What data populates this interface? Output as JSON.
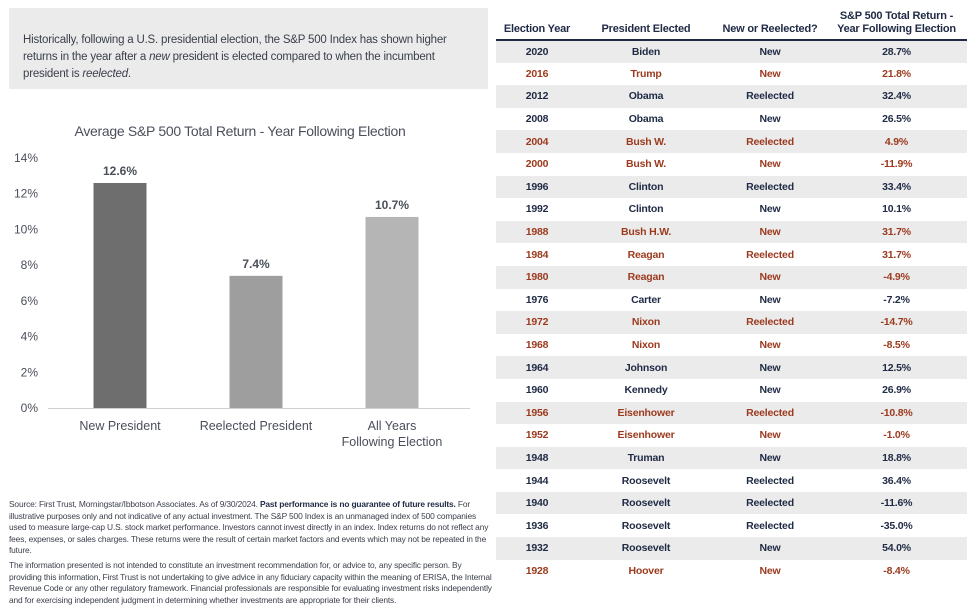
{
  "intro": {
    "text_1": "Historically, following a U.S. presidential election, the S&P 500 Index has shown higher returns in the year after a ",
    "em_1": "new",
    "text_2": " president is elected compared to when the incumbent president is ",
    "em_2": "reelected",
    "text_3": "."
  },
  "colors": {
    "navy": "#1f2a44",
    "republican_red": "#9c3a1e",
    "bar_new_president": "#6e6e6e",
    "bar_reelected": "#9e9e9e",
    "bar_all_years": "#b5b5b5",
    "row_shade": "#ebebeb"
  },
  "chart_data": {
    "type": "bar",
    "title": "Average S&P 500 Total Return - Year Following Election",
    "categories": [
      "New President",
      "Reelected President",
      "All Years Following Election"
    ],
    "category_lines": [
      [
        "New President"
      ],
      [
        "Reelected President"
      ],
      [
        "All Years",
        "Following Election"
      ]
    ],
    "values": [
      12.6,
      7.4,
      10.7
    ],
    "data_labels": [
      "12.6%",
      "7.4%",
      "10.7%"
    ],
    "yticks": [
      0,
      2,
      4,
      6,
      8,
      10,
      12,
      14
    ],
    "ytick_labels": [
      "0%",
      "2%",
      "4%",
      "6%",
      "8%",
      "10%",
      "12%",
      "14%"
    ],
    "ylim": [
      0,
      14
    ],
    "grid": false,
    "legend": "none"
  },
  "table": {
    "headers": [
      "Election Year",
      "President Elected",
      "New or Reelected?",
      [
        "S&P 500 Total Return -",
        "Year Following Election"
      ]
    ],
    "rows": [
      {
        "year": "2020",
        "president": "Biden",
        "status": "New",
        "return": "28.7%",
        "party": "dem"
      },
      {
        "year": "2016",
        "president": "Trump",
        "status": "New",
        "return": "21.8%",
        "party": "rep"
      },
      {
        "year": "2012",
        "president": "Obama",
        "status": "Reelected",
        "return": "32.4%",
        "party": "dem"
      },
      {
        "year": "2008",
        "president": "Obama",
        "status": "New",
        "return": "26.5%",
        "party": "dem"
      },
      {
        "year": "2004",
        "president": "Bush W.",
        "status": "Reelected",
        "return": "4.9%",
        "party": "rep"
      },
      {
        "year": "2000",
        "president": "Bush W.",
        "status": "New",
        "return": "-11.9%",
        "party": "rep"
      },
      {
        "year": "1996",
        "president": "Clinton",
        "status": "Reelected",
        "return": "33.4%",
        "party": "dem"
      },
      {
        "year": "1992",
        "president": "Clinton",
        "status": "New",
        "return": "10.1%",
        "party": "dem"
      },
      {
        "year": "1988",
        "president": "Bush H.W.",
        "status": "New",
        "return": "31.7%",
        "party": "rep"
      },
      {
        "year": "1984",
        "president": "Reagan",
        "status": "Reelected",
        "return": "31.7%",
        "party": "rep"
      },
      {
        "year": "1980",
        "president": "Reagan",
        "status": "New",
        "return": "-4.9%",
        "party": "rep"
      },
      {
        "year": "1976",
        "president": "Carter",
        "status": "New",
        "return": "-7.2%",
        "party": "dem"
      },
      {
        "year": "1972",
        "president": "Nixon",
        "status": "Reelected",
        "return": "-14.7%",
        "party": "rep"
      },
      {
        "year": "1968",
        "president": "Nixon",
        "status": "New",
        "return": "-8.5%",
        "party": "rep"
      },
      {
        "year": "1964",
        "president": "Johnson",
        "status": "New",
        "return": "12.5%",
        "party": "dem"
      },
      {
        "year": "1960",
        "president": "Kennedy",
        "status": "New",
        "return": "26.9%",
        "party": "dem"
      },
      {
        "year": "1956",
        "president": "Eisenhower",
        "status": "Reelected",
        "return": "-10.8%",
        "party": "rep"
      },
      {
        "year": "1952",
        "president": "Eisenhower",
        "status": "New",
        "return": "-1.0%",
        "party": "rep"
      },
      {
        "year": "1948",
        "president": "Truman",
        "status": "New",
        "return": "18.8%",
        "party": "dem"
      },
      {
        "year": "1944",
        "president": "Roosevelt",
        "status": "Reelected",
        "return": "36.4%",
        "party": "dem"
      },
      {
        "year": "1940",
        "president": "Roosevelt",
        "status": "Reelected",
        "return": "-11.6%",
        "party": "dem"
      },
      {
        "year": "1936",
        "president": "Roosevelt",
        "status": "Reelected",
        "return": "-35.0%",
        "party": "dem"
      },
      {
        "year": "1932",
        "president": "Roosevelt",
        "status": "New",
        "return": "54.0%",
        "party": "dem"
      },
      {
        "year": "1928",
        "president": "Hoover",
        "status": "New",
        "return": "-8.4%",
        "party": "rep"
      }
    ]
  },
  "footnote": {
    "p1_text": "Source: First Trust, Morningstar/Ibbotson Associates. As of 9/30/2024. ",
    "p1_bold": "Past performance is no guarantee of future results.",
    "p1_rest": " For illustrative purposes only and not indicative of any actual investment. The S&P 500 Index is an unmanaged index of 500 companies used to measure large-cap U.S. stock market performance. Investors cannot invest directly in an index. Index returns do not reflect any fees, expenses, or sales charges. These returns were the result of certain market factors and events which may not be repeated in the future.",
    "p2": "The information presented is not intended to constitute an investment recommendation for, or advice to, any specific person. By providing this information, First Trust is not undertaking to give advice in any fiduciary capacity within the meaning of ERISA, the Internal Revenue Code or any other regulatory framework. Financial professionals are responsible for evaluating investment risks independently and for exercising independent judgment in determining whether investments are appropriate for their clients."
  }
}
